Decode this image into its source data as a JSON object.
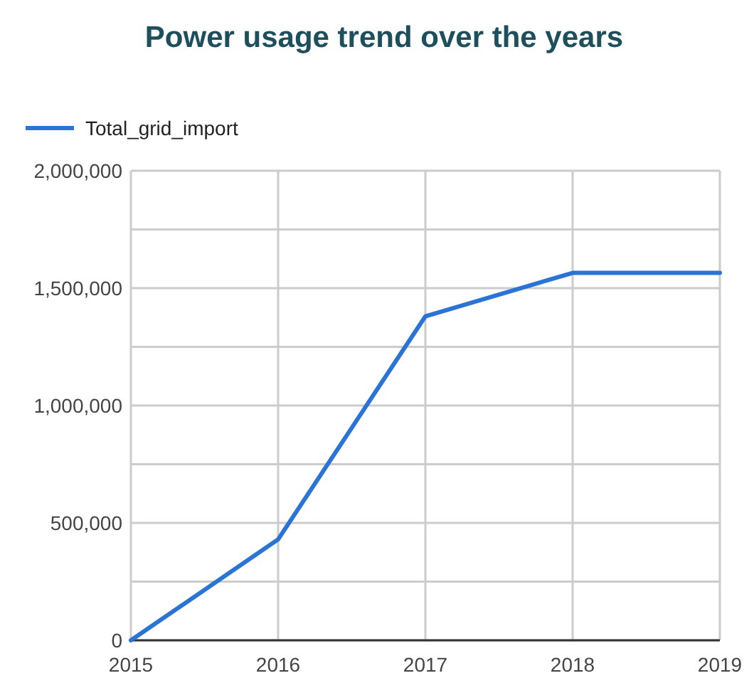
{
  "chart_data": {
    "type": "line",
    "title": "Power usage trend over the years",
    "x": [
      2015,
      2016,
      2017,
      2018,
      2019
    ],
    "series": [
      {
        "name": "Total_grid_import",
        "color": "#2a74d5",
        "values": [
          0,
          430000,
          1380000,
          1565000,
          1565000
        ]
      }
    ],
    "xlim": [
      2015,
      2019
    ],
    "xticks": [
      2015,
      2016,
      2017,
      2018,
      2019
    ],
    "ylim": [
      0,
      2000000
    ],
    "yticks": [
      {
        "value": 0,
        "label": "0"
      },
      {
        "value": 250000,
        "label": null
      },
      {
        "value": 500000,
        "label": "500,000"
      },
      {
        "value": 750000,
        "label": null
      },
      {
        "value": 1000000,
        "label": "1,000,000"
      },
      {
        "value": 1250000,
        "label": null
      },
      {
        "value": 1500000,
        "label": "1,500,000"
      },
      {
        "value": 1750000,
        "label": null
      },
      {
        "value": 2000000,
        "label": "2,000,000"
      }
    ],
    "grid": true,
    "legend": "top left",
    "marker": "none",
    "line_style": "solid"
  }
}
